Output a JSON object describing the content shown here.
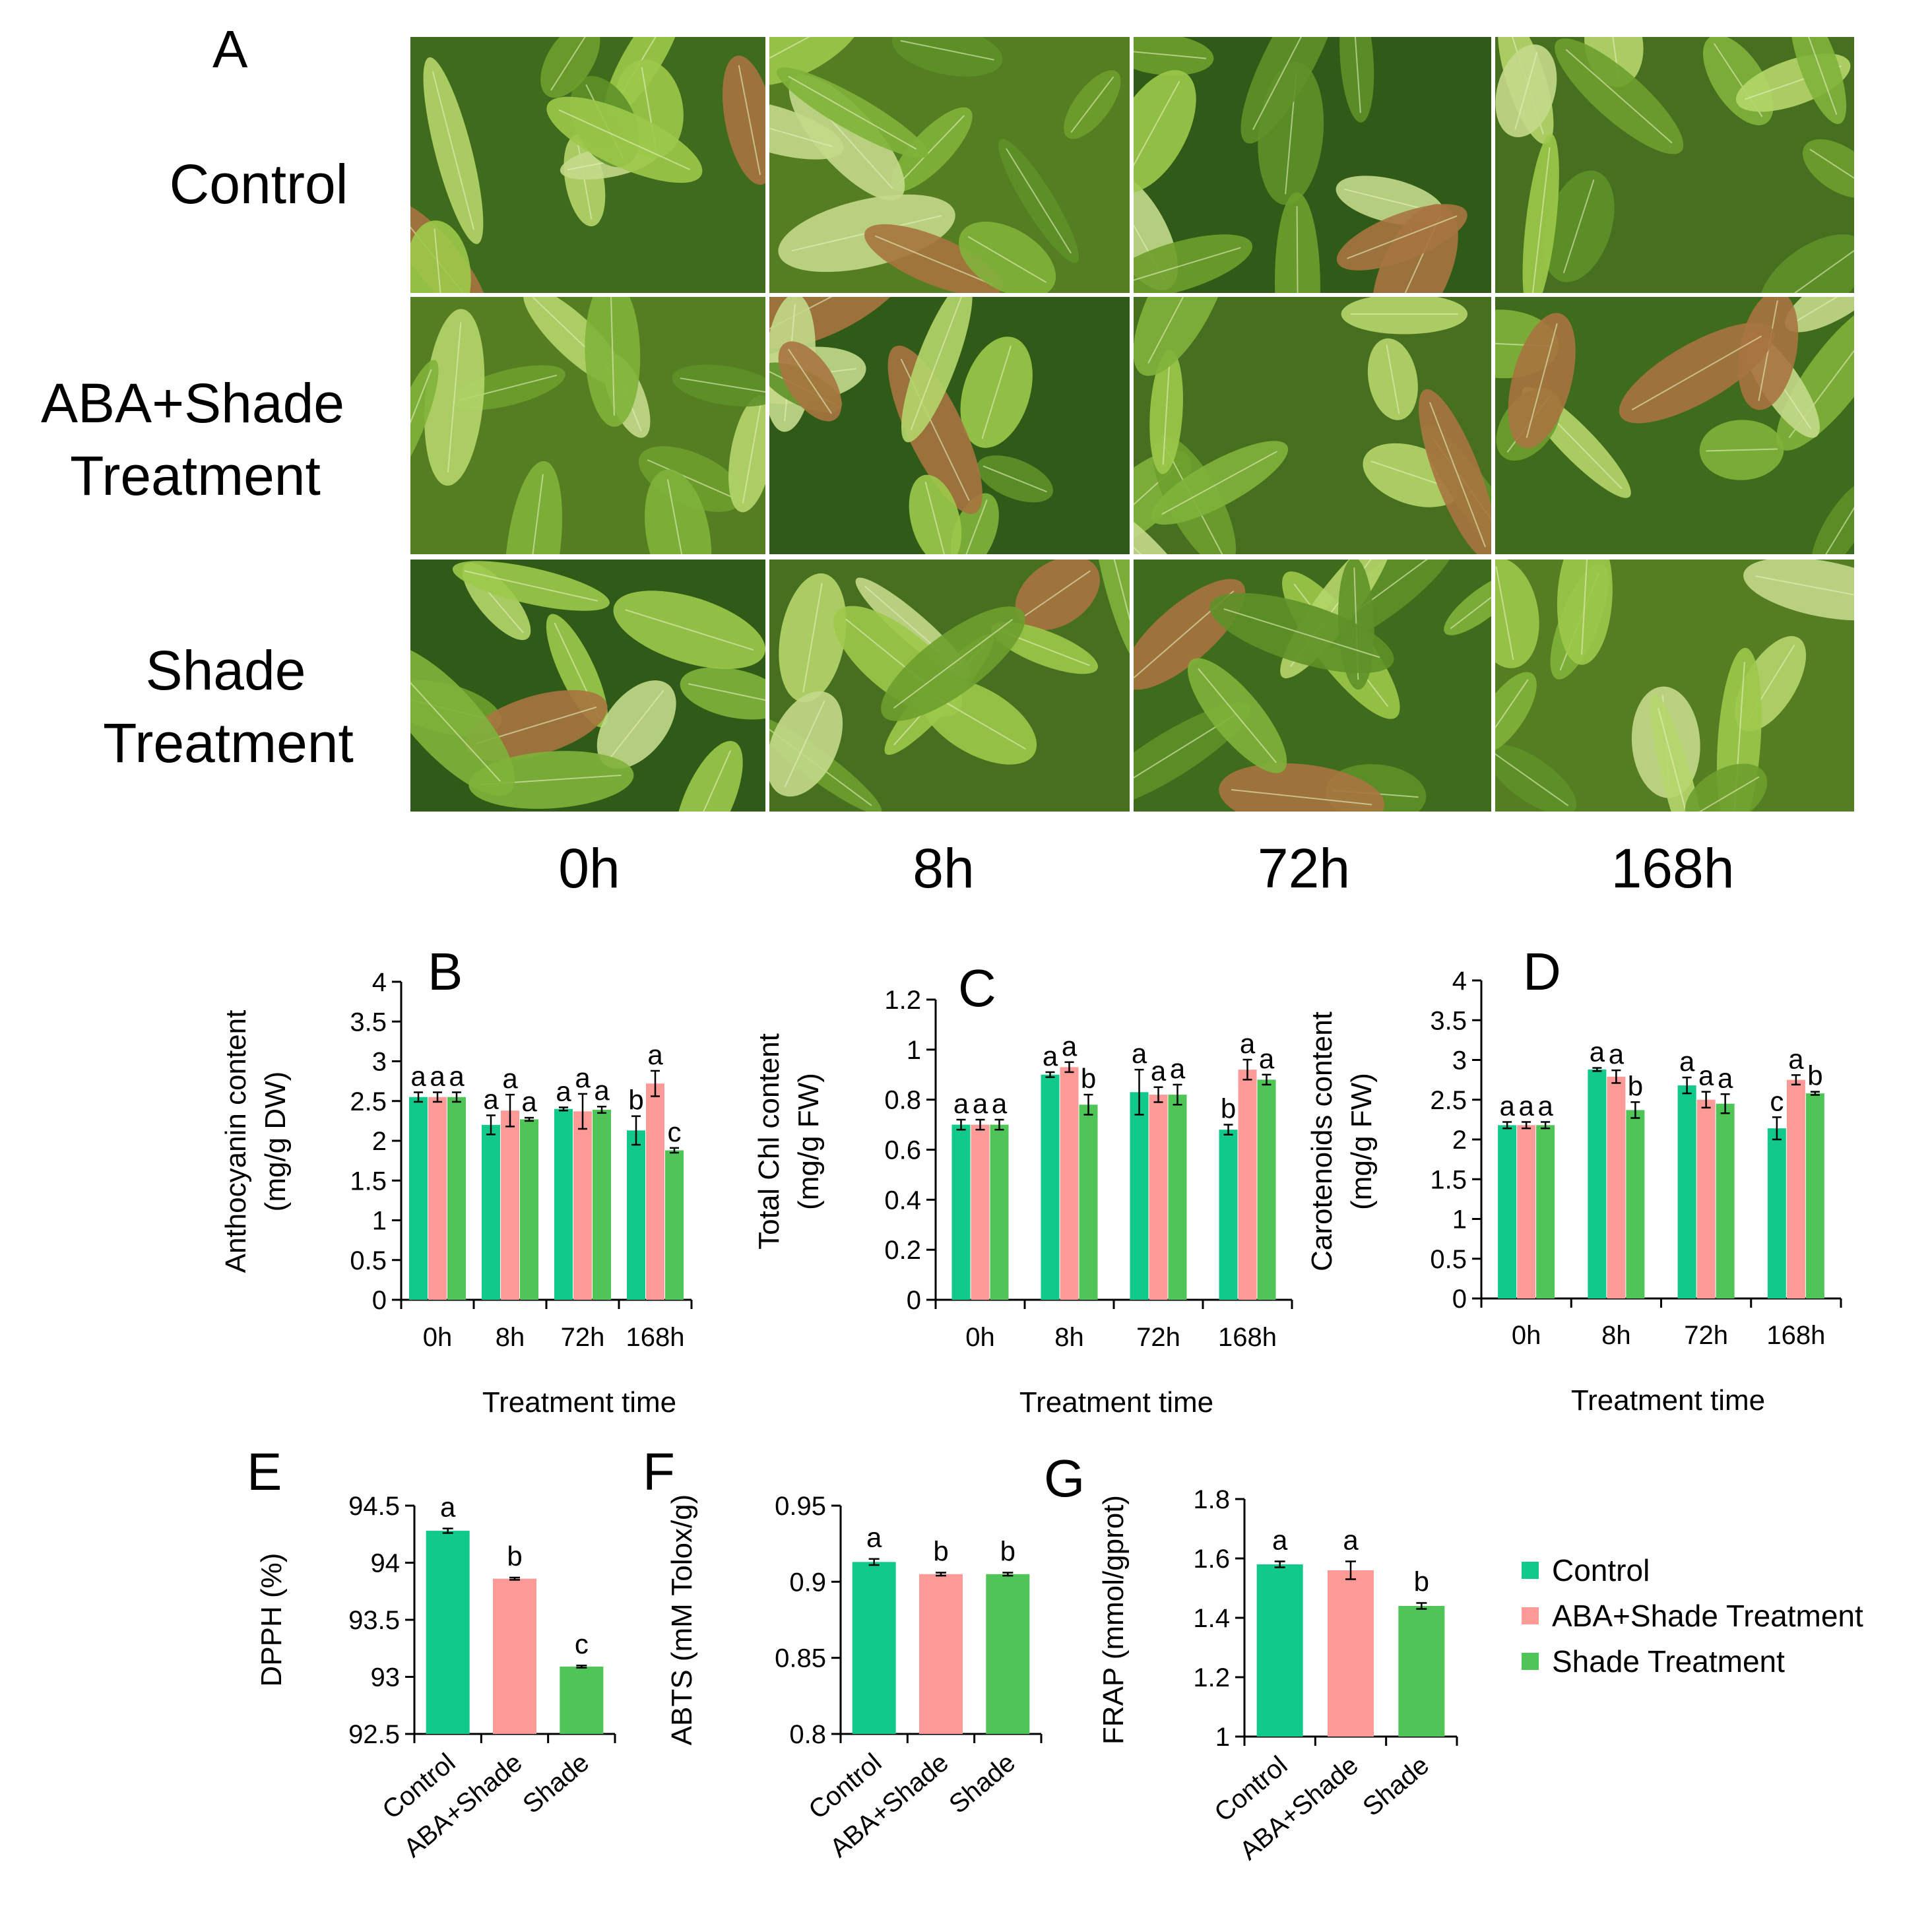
{
  "colors": {
    "control": "#10c98a",
    "aba_shade": "#fb9a97",
    "shade": "#4fc558",
    "photo_border": "#ffffff"
  },
  "panel_a": {
    "letter": "A",
    "row_labels": [
      [
        "Control"
      ],
      [
        "ABA+Shade",
        "Treatment"
      ],
      [
        "Shade",
        "Treatment"
      ]
    ],
    "col_labels": [
      "0h",
      "8h",
      "72h",
      "168h"
    ],
    "photos": [
      [
        "tea-leaves-photo",
        "tea-leaves-photo",
        "tea-leaves-photo",
        "tea-leaves-photo"
      ],
      [
        "tea-leaves-photo",
        "tea-leaves-photo",
        "tea-leaves-photo",
        "tea-leaves-photo"
      ],
      [
        "tea-leaves-photo",
        "tea-leaves-photo",
        "tea-leaves-photo",
        "tea-leaves-photo"
      ]
    ]
  },
  "legend": {
    "entries": [
      "Control",
      "ABA+Shade Treatment",
      "Shade Treatment"
    ]
  },
  "chart_data": [
    {
      "panel": "B",
      "type": "bar",
      "ylabel": [
        "Anthocyanin content",
        "(mg/g DW)"
      ],
      "xlabel": "Treatment time",
      "ylim": [
        0,
        4
      ],
      "yticks": [
        "0",
        "0.5",
        "1",
        "1.5",
        "2",
        "2.5",
        "3",
        "3.5",
        "4"
      ],
      "categories": [
        "0h",
        "8h",
        "72h",
        "168h"
      ],
      "series": [
        {
          "name": "Control",
          "values": [
            2.55,
            2.2,
            2.4,
            2.13
          ],
          "errors": [
            0.06,
            0.12,
            0.02,
            0.18
          ],
          "letters": [
            "a",
            "a",
            "a",
            "b"
          ]
        },
        {
          "name": "ABA+Shade Treatment",
          "values": [
            2.55,
            2.38,
            2.37,
            2.72
          ],
          "errors": [
            0.06,
            0.2,
            0.22,
            0.16
          ],
          "letters": [
            "a",
            "a",
            "a",
            "a"
          ]
        },
        {
          "name": "Shade Treatment",
          "values": [
            2.55,
            2.27,
            2.39,
            1.88
          ],
          "errors": [
            0.06,
            0.02,
            0.04,
            0.03
          ],
          "letters": [
            "a",
            "a",
            "a",
            "c"
          ]
        }
      ]
    },
    {
      "panel": "C",
      "type": "bar",
      "ylabel": [
        "Total Chl content",
        "(mg/g FW)"
      ],
      "xlabel": "Treatment time",
      "ylim": [
        0,
        1.2
      ],
      "yticks": [
        "0",
        "0.2",
        "0.4",
        "0.6",
        "0.8",
        "1",
        "1.2"
      ],
      "categories": [
        "0h",
        "8h",
        "72h",
        "168h"
      ],
      "series": [
        {
          "name": "Control",
          "values": [
            0.7,
            0.9,
            0.83,
            0.68
          ],
          "errors": [
            0.02,
            0.01,
            0.09,
            0.02
          ],
          "letters": [
            "a",
            "a",
            "a",
            "b"
          ]
        },
        {
          "name": "ABA+Shade Treatment",
          "values": [
            0.7,
            0.93,
            0.82,
            0.92
          ],
          "errors": [
            0.02,
            0.02,
            0.03,
            0.04
          ],
          "letters": [
            "a",
            "a",
            "a",
            "a"
          ]
        },
        {
          "name": "Shade Treatment",
          "values": [
            0.7,
            0.78,
            0.82,
            0.88
          ],
          "errors": [
            0.02,
            0.04,
            0.04,
            0.02
          ],
          "letters": [
            "a",
            "b",
            "a",
            "a"
          ]
        }
      ]
    },
    {
      "panel": "D",
      "type": "bar",
      "ylabel": [
        "Carotenoids content",
        "(mg/g FW)"
      ],
      "xlabel": "Treatment time",
      "ylim": [
        0,
        4
      ],
      "yticks": [
        "0",
        "0.5",
        "1",
        "1.5",
        "2",
        "2.5",
        "3",
        "3.5",
        "4"
      ],
      "categories": [
        "0h",
        "8h",
        "72h",
        "168h"
      ],
      "series": [
        {
          "name": "Control",
          "values": [
            2.18,
            2.88,
            2.68,
            2.14
          ],
          "errors": [
            0.04,
            0.02,
            0.1,
            0.14
          ],
          "letters": [
            "a",
            "a",
            "a",
            "c"
          ]
        },
        {
          "name": "ABA+Shade Treatment",
          "values": [
            2.18,
            2.79,
            2.5,
            2.75
          ],
          "errors": [
            0.04,
            0.08,
            0.1,
            0.06
          ],
          "letters": [
            "a",
            "a",
            "a",
            "a"
          ]
        },
        {
          "name": "Shade Treatment",
          "values": [
            2.18,
            2.37,
            2.45,
            2.58
          ],
          "errors": [
            0.04,
            0.1,
            0.12,
            0.02
          ],
          "letters": [
            "a",
            "b",
            "a",
            "b"
          ]
        }
      ]
    },
    {
      "panel": "E",
      "type": "bar",
      "ylabel": [
        "DPPH (%)"
      ],
      "ylim": [
        92.5,
        94.5
      ],
      "yticks": [
        "92.5",
        "93",
        "93.5",
        "94",
        "94.5"
      ],
      "categories": [
        "Control",
        "ABA+Shade",
        "Shade"
      ],
      "values": [
        94.28,
        93.86,
        93.09
      ],
      "errors": [
        0.02,
        0.01,
        0.01
      ],
      "letters": [
        "a",
        "b",
        "c"
      ]
    },
    {
      "panel": "F",
      "type": "bar",
      "ylabel": [
        "ABTS (mM Tolox/g)"
      ],
      "ylim": [
        0.8,
        0.95
      ],
      "yticks": [
        "0.8",
        "0.85",
        "0.9",
        "0.95"
      ],
      "categories": [
        "Control",
        "ABA+Shade",
        "Shade"
      ],
      "values": [
        0.913,
        0.905,
        0.905
      ],
      "errors": [
        0.002,
        0.001,
        0.001
      ],
      "letters": [
        "a",
        "b",
        "b"
      ]
    },
    {
      "panel": "G",
      "type": "bar",
      "ylabel": [
        "FRAP (mmol/gprot)"
      ],
      "ylim": [
        1,
        1.8
      ],
      "yticks": [
        "1",
        "1.2",
        "1.4",
        "1.6",
        "1.8"
      ],
      "categories": [
        "Control",
        "ABA+Shade",
        "Shade"
      ],
      "values": [
        1.58,
        1.56,
        1.44
      ],
      "errors": [
        0.01,
        0.03,
        0.01
      ],
      "letters": [
        "a",
        "a",
        "b"
      ]
    }
  ]
}
